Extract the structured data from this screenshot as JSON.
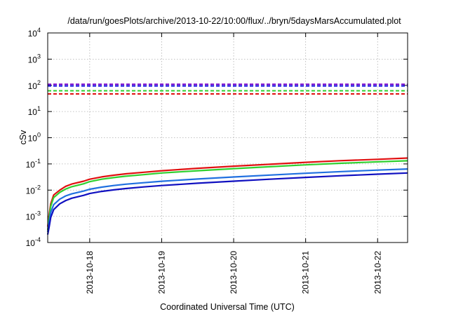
{
  "chart_data": {
    "type": "line",
    "title": "/data/run/goesPlots/archive/2013-10-22/10:00/flux/../bryn/5daysMarsAccumulated.plot",
    "xlabel": "Coordinated Universal Time (UTC)",
    "ylabel": "cSv",
    "y_scale": "log",
    "ylim": [
      0.0001,
      10000
    ],
    "y_ticks": [
      {
        "value": 0.0001,
        "base": "10",
        "exp": "-4"
      },
      {
        "value": 0.001,
        "base": "10",
        "exp": "-3"
      },
      {
        "value": 0.01,
        "base": "10",
        "exp": "-2"
      },
      {
        "value": 0.1,
        "base": "10",
        "exp": "-1"
      },
      {
        "value": 1,
        "base": "10",
        "exp": "0"
      },
      {
        "value": 10,
        "base": "10",
        "exp": "1"
      },
      {
        "value": 100,
        "base": "10",
        "exp": "2"
      },
      {
        "value": 1000,
        "base": "10",
        "exp": "3"
      },
      {
        "value": 10000,
        "base": "10",
        "exp": "4"
      }
    ],
    "x_range": [
      "2013-10-17 10:00",
      "2013-10-22 10:00"
    ],
    "x_ticks": [
      "2013-10-18",
      "2013-10-19",
      "2013-10-20",
      "2013-10-21",
      "2013-10-22"
    ],
    "grid": true,
    "thresholds": [
      {
        "color": "#7700cc",
        "value": 110,
        "style": "dashed"
      },
      {
        "color": "#1010e0",
        "value": 95,
        "style": "dashed"
      },
      {
        "color": "#30d030",
        "value": 62,
        "style": "dashed"
      },
      {
        "color": "#e01010",
        "value": 47,
        "style": "dashed"
      }
    ],
    "series": [
      {
        "color": "#e01010",
        "points": [
          [
            "2013-10-17 10:00",
            0.0004
          ],
          [
            "2013-10-17 10:30",
            0.0012
          ],
          [
            "2013-10-17 11:00",
            0.003
          ],
          [
            "2013-10-17 12:00",
            0.0065
          ],
          [
            "2013-10-17 14:00",
            0.01
          ],
          [
            "2013-10-17 16:00",
            0.014
          ],
          [
            "2013-10-17 18:00",
            0.017
          ],
          [
            "2013-10-17 22:00",
            0.022
          ],
          [
            "2013-10-18 00:00",
            0.026
          ],
          [
            "2013-10-18 04:00",
            0.032
          ],
          [
            "2013-10-18 08:00",
            0.037
          ],
          [
            "2013-10-18 12:00",
            0.042
          ],
          [
            "2013-10-18 18:00",
            0.048
          ],
          [
            "2013-10-19 00:00",
            0.055
          ],
          [
            "2013-10-19 12:00",
            0.068
          ],
          [
            "2013-10-20 00:00",
            0.082
          ],
          [
            "2013-10-20 12:00",
            0.097
          ],
          [
            "2013-10-21 00:00",
            0.115
          ],
          [
            "2013-10-21 12:00",
            0.133
          ],
          [
            "2013-10-22 00:00",
            0.15
          ],
          [
            "2013-10-22 10:00",
            0.168
          ]
        ]
      },
      {
        "color": "#30d030",
        "points": [
          [
            "2013-10-17 10:00",
            0.0003
          ],
          [
            "2013-10-17 10:30",
            0.0009
          ],
          [
            "2013-10-17 11:00",
            0.0024
          ],
          [
            "2013-10-17 12:00",
            0.0052
          ],
          [
            "2013-10-17 14:00",
            0.0082
          ],
          [
            "2013-10-17 16:00",
            0.011
          ],
          [
            "2013-10-17 18:00",
            0.0135
          ],
          [
            "2013-10-17 22:00",
            0.0175
          ],
          [
            "2013-10-18 00:00",
            0.021
          ],
          [
            "2013-10-18 04:00",
            0.026
          ],
          [
            "2013-10-18 08:00",
            0.03
          ],
          [
            "2013-10-18 12:00",
            0.034
          ],
          [
            "2013-10-18 18:00",
            0.039
          ],
          [
            "2013-10-19 00:00",
            0.045
          ],
          [
            "2013-10-19 12:00",
            0.055
          ],
          [
            "2013-10-20 00:00",
            0.066
          ],
          [
            "2013-10-20 12:00",
            0.078
          ],
          [
            "2013-10-21 00:00",
            0.092
          ],
          [
            "2013-10-21 12:00",
            0.106
          ],
          [
            "2013-10-22 00:00",
            0.12
          ],
          [
            "2013-10-22 10:00",
            0.132
          ]
        ]
      },
      {
        "color": "#2070e0",
        "points": [
          [
            "2013-10-17 10:00",
            0.00025
          ],
          [
            "2013-10-17 10:30",
            0.0006
          ],
          [
            "2013-10-17 11:00",
            0.0014
          ],
          [
            "2013-10-17 12:00",
            0.0028
          ],
          [
            "2013-10-17 14:00",
            0.0045
          ],
          [
            "2013-10-17 16:00",
            0.006
          ],
          [
            "2013-10-17 18:00",
            0.0072
          ],
          [
            "2013-10-17 22:00",
            0.0092
          ],
          [
            "2013-10-18 00:00",
            0.0108
          ],
          [
            "2013-10-18 04:00",
            0.013
          ],
          [
            "2013-10-18 08:00",
            0.015
          ],
          [
            "2013-10-18 12:00",
            0.0168
          ],
          [
            "2013-10-18 18:00",
            0.0192
          ],
          [
            "2013-10-19 00:00",
            0.0218
          ],
          [
            "2013-10-19 12:00",
            0.0265
          ],
          [
            "2013-10-20 00:00",
            0.0318
          ],
          [
            "2013-10-20 12:00",
            0.0375
          ],
          [
            "2013-10-21 00:00",
            0.044
          ],
          [
            "2013-10-21 12:00",
            0.051
          ],
          [
            "2013-10-22 00:00",
            0.058
          ],
          [
            "2013-10-22 10:00",
            0.064
          ]
        ]
      },
      {
        "color": "#1010c0",
        "points": [
          [
            "2013-10-17 10:00",
            0.0002
          ],
          [
            "2013-10-17 10:30",
            0.0004
          ],
          [
            "2013-10-17 11:00",
            0.0009
          ],
          [
            "2013-10-17 12:00",
            0.0018
          ],
          [
            "2013-10-17 14:00",
            0.003
          ],
          [
            "2013-10-17 16:00",
            0.004
          ],
          [
            "2013-10-17 18:00",
            0.0049
          ],
          [
            "2013-10-17 22:00",
            0.0063
          ],
          [
            "2013-10-18 00:00",
            0.0074
          ],
          [
            "2013-10-18 04:00",
            0.0089
          ],
          [
            "2013-10-18 08:00",
            0.0102
          ],
          [
            "2013-10-18 12:00",
            0.0115
          ],
          [
            "2013-10-18 18:00",
            0.0132
          ],
          [
            "2013-10-19 00:00",
            0.015
          ],
          [
            "2013-10-19 12:00",
            0.0183
          ],
          [
            "2013-10-20 00:00",
            0.022
          ],
          [
            "2013-10-20 12:00",
            0.026
          ],
          [
            "2013-10-21 00:00",
            0.0305
          ],
          [
            "2013-10-21 12:00",
            0.0355
          ],
          [
            "2013-10-22 00:00",
            0.0405
          ],
          [
            "2013-10-22 10:00",
            0.045
          ]
        ]
      }
    ]
  }
}
